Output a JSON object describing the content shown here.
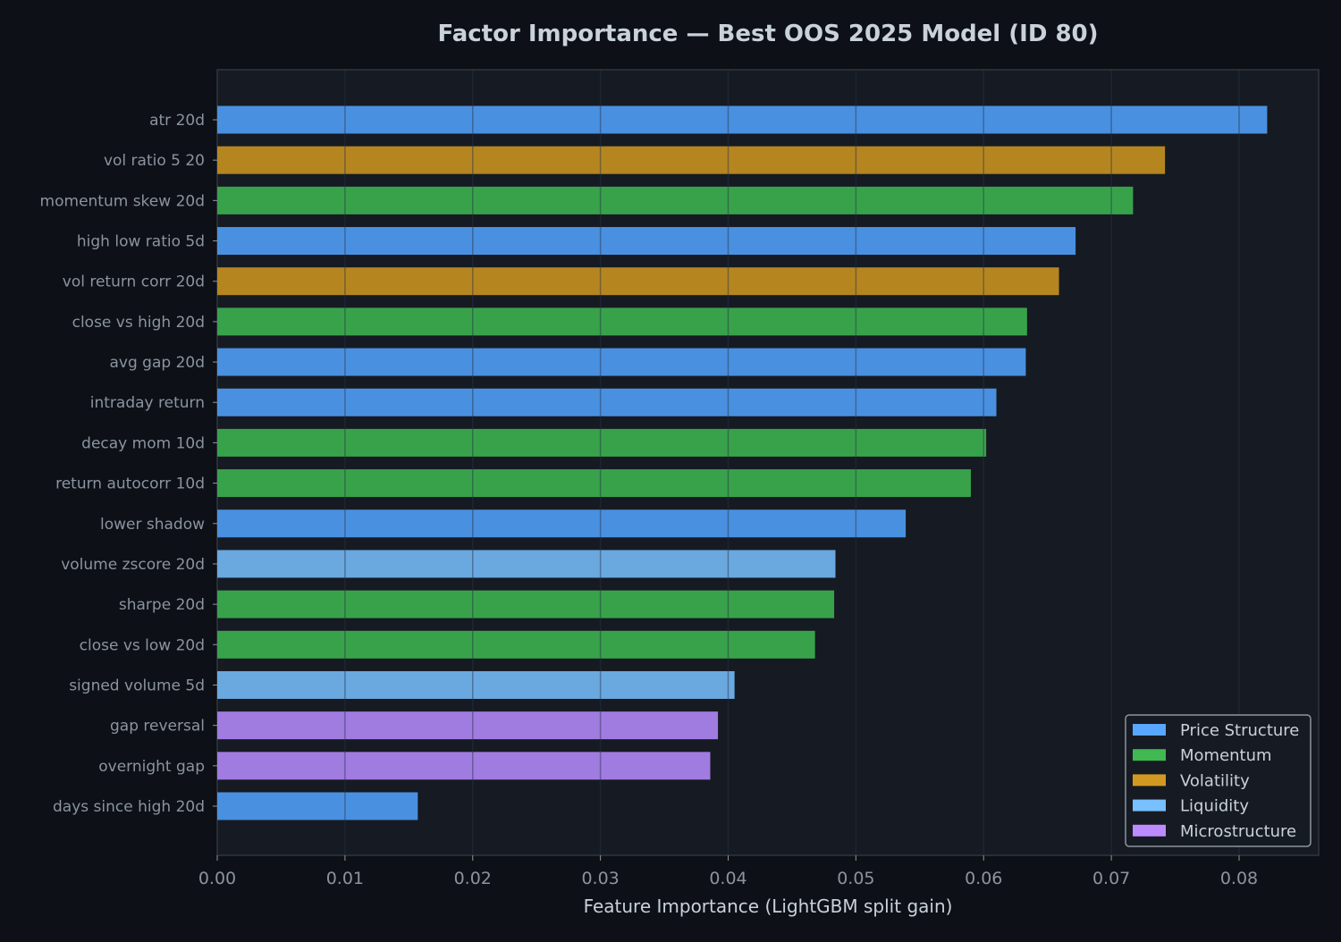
{
  "chart_data": {
    "type": "bar",
    "orientation": "horizontal",
    "title": "Factor Importance — Best OOS 2025 Model (ID 80)",
    "xlabel": "Feature Importance (LightGBM split gain)",
    "ylabel": "",
    "xlim": [
      0,
      0.086
    ],
    "xticks": [
      "0.00",
      "0.01",
      "0.02",
      "0.03",
      "0.04",
      "0.05",
      "0.06",
      "0.07",
      "0.08"
    ],
    "grid": "vertical",
    "legend_placement": "bottom-right",
    "categories": [
      "atr 20d",
      "vol ratio 5 20",
      "momentum skew 20d",
      "high low ratio 5d",
      "vol return corr 20d",
      "close vs high 20d",
      "avg gap 20d",
      "intraday return",
      "decay mom 10d",
      "return autocorr 10d",
      "lower shadow",
      "volume zscore 20d",
      "sharpe 20d",
      "close vs low 20d",
      "signed volume 5d",
      "gap reversal",
      "overnight gap",
      "days since high 20d"
    ],
    "values": [
      0.0822,
      0.0742,
      0.0717,
      0.0672,
      0.0659,
      0.0634,
      0.0633,
      0.061,
      0.0602,
      0.059,
      0.0539,
      0.0484,
      0.0483,
      0.0468,
      0.0405,
      0.0392,
      0.0386,
      0.0157
    ],
    "groups": [
      "Price Structure",
      "Volatility",
      "Momentum",
      "Price Structure",
      "Volatility",
      "Momentum",
      "Price Structure",
      "Price Structure",
      "Momentum",
      "Momentum",
      "Price Structure",
      "Liquidity",
      "Momentum",
      "Momentum",
      "Liquidity",
      "Microstructure",
      "Microstructure",
      "Price Structure"
    ],
    "legend": [
      {
        "name": "Price Structure",
        "color": "#58a6ff"
      },
      {
        "name": "Momentum",
        "color": "#3fb950"
      },
      {
        "name": "Volatility",
        "color": "#d29922"
      },
      {
        "name": "Liquidity",
        "color": "#79c0ff"
      },
      {
        "name": "Microstructure",
        "color": "#bc8cff"
      }
    ],
    "bar_colors": {
      "Price Structure": "#4a90e0",
      "Momentum": "#38a24b",
      "Volatility": "#b58620",
      "Liquidity": "#6aa8e0",
      "Microstructure": "#a07be0"
    }
  }
}
